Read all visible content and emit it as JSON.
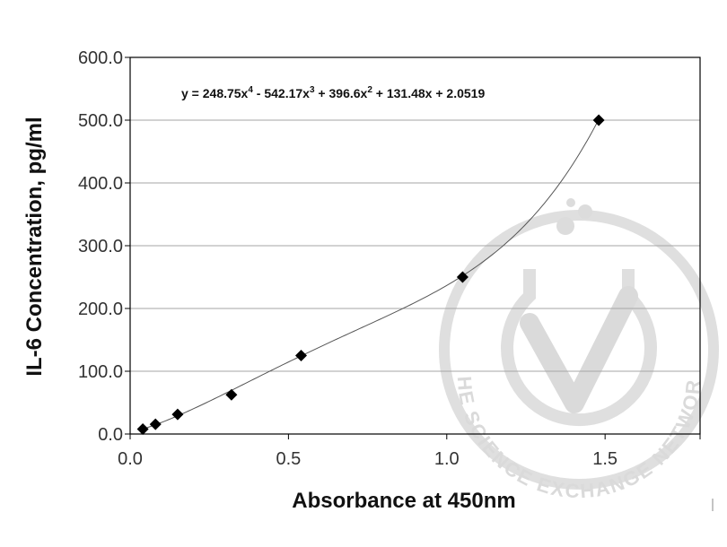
{
  "chart_data": {
    "type": "scatter",
    "title": "",
    "xlabel": "Absorbance at 450nm",
    "ylabel": "IL-6 Concentration, pg/ml",
    "xlim": [
      0.0,
      1.8
    ],
    "ylim": [
      0.0,
      600.0
    ],
    "x_ticks": [
      "0.0",
      "0.5",
      "1.0",
      "1.5"
    ],
    "x_tick_values": [
      0.0,
      0.5,
      1.0,
      1.5
    ],
    "y_ticks": [
      "0.0",
      "100.0",
      "200.0",
      "300.0",
      "400.0",
      "500.0",
      "600.0"
    ],
    "y_tick_values": [
      0,
      100,
      200,
      300,
      400,
      500,
      600
    ],
    "grid": "horizontal",
    "legend": "none",
    "series": [
      {
        "marker": "diamond",
        "color": "#000000",
        "points": [
          {
            "x": 0.04,
            "y": 7.8
          },
          {
            "x": 0.08,
            "y": 15.6
          },
          {
            "x": 0.15,
            "y": 31.25
          },
          {
            "x": 0.32,
            "y": 62.5
          },
          {
            "x": 0.54,
            "y": 125
          },
          {
            "x": 1.05,
            "y": 250
          },
          {
            "x": 1.48,
            "y": 500
          }
        ]
      }
    ],
    "trendline": {
      "type": "polynomial",
      "order": 4,
      "coefficients": [
        248.75,
        -542.17,
        396.6,
        131.48,
        2.0519
      ],
      "equation_parts": {
        "lead": "y = 248.75x",
        "e4": "4",
        "t3": " - 542.17x",
        "e3": "3",
        "t2": " + 396.6x",
        "e2": "2",
        "tail": " + 131.48x + 2.0519"
      },
      "x_range": [
        0.04,
        1.48
      ],
      "color": "#555555"
    },
    "watermark": {
      "text": "THE SCIENCE EXCHANGE NETWORK",
      "color": "#d9d9d9"
    }
  }
}
